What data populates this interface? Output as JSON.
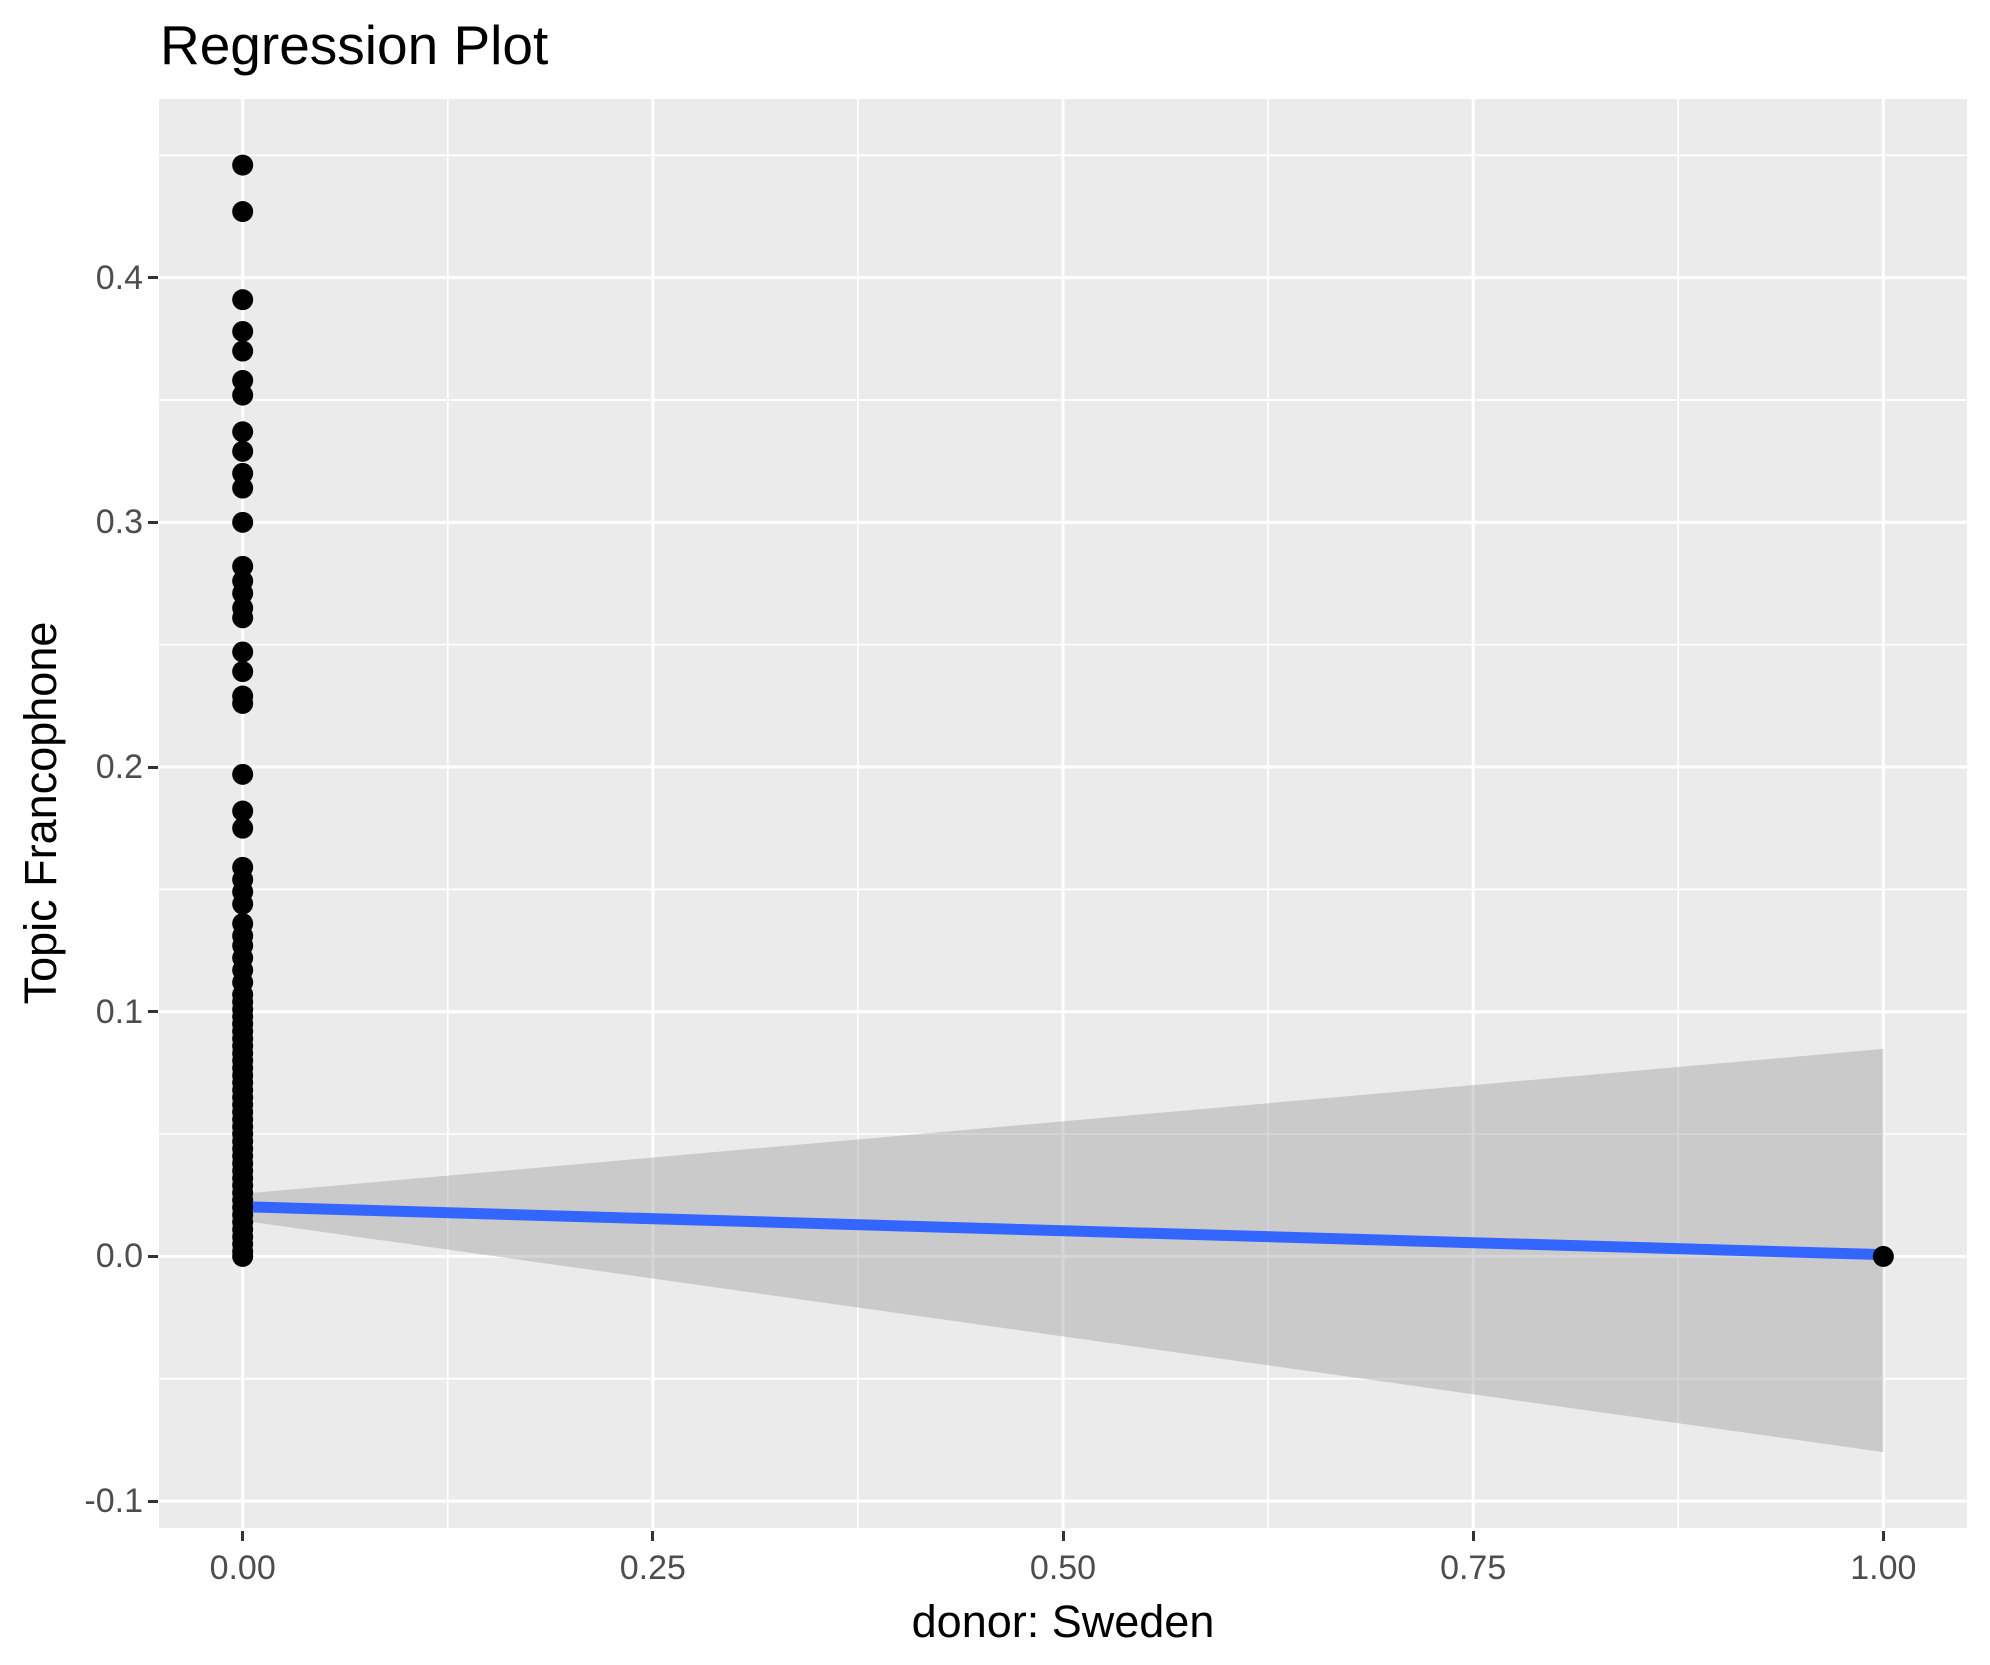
{
  "title": "Regression Plot",
  "chart_data": {
    "type": "scatter",
    "title": "Regression Plot",
    "xlabel": "donor: Sweden",
    "ylabel": "Topic Francophone",
    "xlim": [
      -0.051,
      1.051
    ],
    "ylim": [
      -0.111,
      0.473
    ],
    "grid": "on",
    "legend": "none",
    "panel_background": "#EBEBEB",
    "grid_color": "#FFFFFF",
    "tick_label_color": "#4D4D4D",
    "tick_mark_color": "#333333",
    "point_color": "#000000",
    "regression_line_color": "#3366FF",
    "confidence_band_color": "#999999",
    "confidence_band_opacity": 0.4,
    "x_axis": {
      "title": "donor: Sweden",
      "ticks": [
        {
          "value": 0.0,
          "label": "0.00"
        },
        {
          "value": 0.25,
          "label": "0.25"
        },
        {
          "value": 0.5,
          "label": "0.50"
        },
        {
          "value": 0.75,
          "label": "0.75"
        },
        {
          "value": 1.0,
          "label": "1.00"
        }
      ],
      "minor_ticks": [
        0.125,
        0.375,
        0.625,
        0.875
      ]
    },
    "y_axis": {
      "title": "Topic Francophone",
      "ticks": [
        {
          "value": -0.1,
          "label": "-0.1"
        },
        {
          "value": 0.0,
          "label": "0.0"
        },
        {
          "value": 0.1,
          "label": "0.1"
        },
        {
          "value": 0.2,
          "label": "0.2"
        },
        {
          "value": 0.3,
          "label": "0.3"
        },
        {
          "value": 0.4,
          "label": "0.4"
        }
      ],
      "minor_ticks": [
        -0.05,
        0.05,
        0.15,
        0.25,
        0.35,
        0.45
      ]
    },
    "series": [
      {
        "name": "observations",
        "type": "scatter",
        "points": [
          [
            0,
            0.446
          ],
          [
            0,
            0.427
          ],
          [
            0,
            0.391
          ],
          [
            0,
            0.378
          ],
          [
            0,
            0.37
          ],
          [
            0,
            0.358
          ],
          [
            0,
            0.352
          ],
          [
            0,
            0.337
          ],
          [
            0,
            0.329
          ],
          [
            0,
            0.32
          ],
          [
            0,
            0.314
          ],
          [
            0,
            0.3
          ],
          [
            0,
            0.282
          ],
          [
            0,
            0.276
          ],
          [
            0,
            0.271
          ],
          [
            0,
            0.265
          ],
          [
            0,
            0.261
          ],
          [
            0,
            0.247
          ],
          [
            0,
            0.239
          ],
          [
            0,
            0.229
          ],
          [
            0,
            0.226
          ],
          [
            0,
            0.197
          ],
          [
            0,
            0.182
          ],
          [
            0,
            0.175
          ],
          [
            0,
            0.159
          ],
          [
            0,
            0.154
          ],
          [
            0,
            0.149
          ],
          [
            0,
            0.144
          ],
          [
            0,
            0.136
          ],
          [
            0,
            0.131
          ],
          [
            0,
            0.127
          ],
          [
            0,
            0.122
          ],
          [
            0,
            0.117
          ],
          [
            0,
            0.112
          ],
          [
            0,
            0.107
          ],
          [
            0,
            0.104
          ],
          [
            0,
            0.101
          ],
          [
            0,
            0.098
          ],
          [
            0,
            0.095
          ],
          [
            0,
            0.092
          ],
          [
            0,
            0.089
          ],
          [
            0,
            0.086
          ],
          [
            0,
            0.083
          ],
          [
            0,
            0.08
          ],
          [
            0,
            0.077
          ],
          [
            0,
            0.074
          ],
          [
            0,
            0.071
          ],
          [
            0,
            0.068
          ],
          [
            0,
            0.065
          ],
          [
            0,
            0.062
          ],
          [
            0,
            0.059
          ],
          [
            0,
            0.056
          ],
          [
            0,
            0.053
          ],
          [
            0,
            0.05
          ],
          [
            0,
            0.047
          ],
          [
            0,
            0.044
          ],
          [
            0,
            0.041
          ],
          [
            0,
            0.038
          ],
          [
            0,
            0.035
          ],
          [
            0,
            0.032
          ],
          [
            0,
            0.029
          ],
          [
            0,
            0.026
          ],
          [
            0,
            0.023
          ],
          [
            0,
            0.02
          ],
          [
            0,
            0.017
          ],
          [
            0,
            0.014
          ],
          [
            0,
            0.011
          ],
          [
            0,
            0.008
          ],
          [
            0,
            0.005
          ],
          [
            0,
            0.002
          ],
          [
            0,
            0.0
          ],
          [
            1,
            0.0
          ]
        ]
      },
      {
        "name": "regression_line",
        "type": "line",
        "points": [
          [
            0,
            0.0203
          ],
          [
            1,
            0.0007
          ]
        ]
      },
      {
        "name": "confidence_band",
        "type": "area",
        "x": [
          0,
          1
        ],
        "upper": [
          0.0256,
          0.0848
        ],
        "lower": [
          0.0146,
          -0.08
        ]
      }
    ]
  }
}
